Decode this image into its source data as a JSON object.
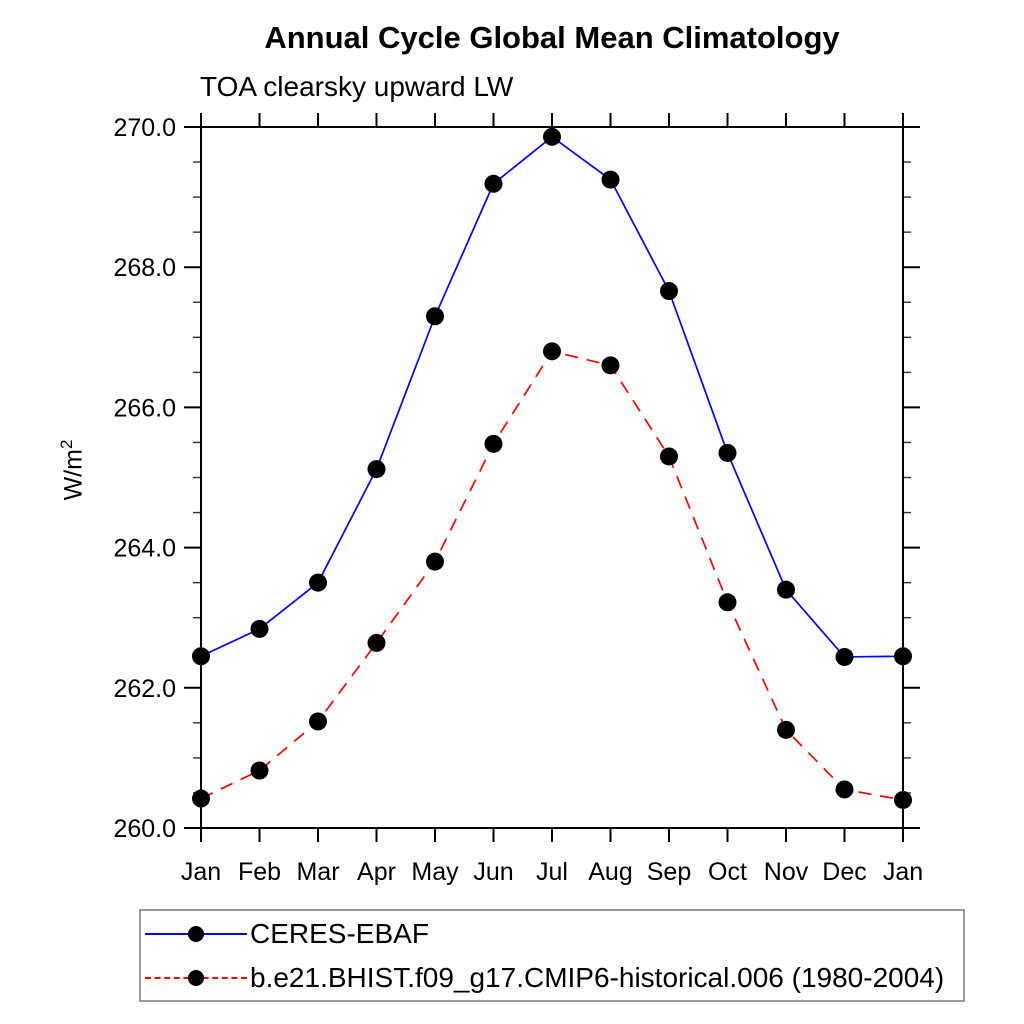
{
  "title": "Annual Cycle Global Mean Climatology",
  "subtitle": "TOA clearsky upward LW",
  "y_axis": {
    "label_base": "W/m",
    "label_sup": "2"
  },
  "colors": {
    "obs_line": "#0000ff",
    "model_line": "#ff0000",
    "marker": "#000000",
    "axis": "#000000",
    "legend_border": "#9a9a9a",
    "background": "#ffffff"
  },
  "chart_data": {
    "type": "line",
    "title": "Annual Cycle Global Mean Climatology",
    "subtitle": "TOA clearsky upward LW",
    "xlabel": "",
    "ylabel": "W/m^2",
    "x_categories": [
      "Jan",
      "Feb",
      "Mar",
      "Apr",
      "May",
      "Jun",
      "Jul",
      "Aug",
      "Sep",
      "Oct",
      "Nov",
      "Dec",
      "Jan"
    ],
    "ylim": [
      260.0,
      270.0
    ],
    "y_tick_labels": [
      "270.0",
      "268.0",
      "266.0",
      "264.0",
      "262.0",
      "260.0"
    ],
    "y_minor_step": 0.5,
    "grid": false,
    "legend_position": "bottom-left-box",
    "series": [
      {
        "name": "CERES-EBAF",
        "color": "#0000ff",
        "line_style": "solid",
        "marker": "filled-black-circle",
        "values": [
          262.45,
          262.84,
          263.5,
          265.12,
          267.3,
          269.19,
          269.86,
          269.25,
          267.66,
          265.35,
          263.4,
          262.44,
          262.45
        ]
      },
      {
        "name": "b.e21.BHIST.f09_g17.CMIP6-historical.006 (1980-2004)",
        "color": "#ff0000",
        "line_style": "dashed",
        "marker": "filled-black-circle",
        "values": [
          260.42,
          260.82,
          261.52,
          262.64,
          263.8,
          265.48,
          266.8,
          266.6,
          265.3,
          263.22,
          261.4,
          260.55,
          260.4
        ]
      }
    ]
  }
}
